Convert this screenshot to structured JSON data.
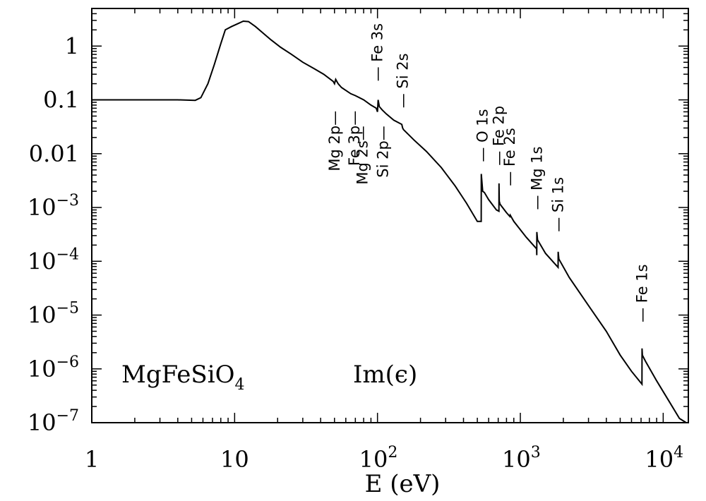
{
  "chart_data": {
    "type": "line",
    "xlabel": "E (eV)",
    "xscale": "log",
    "yscale": "log",
    "xlim": [
      1,
      15000
    ],
    "ylim": [
      1e-07,
      5
    ],
    "x_ticks": [
      {
        "value": 1,
        "base": "1",
        "exp": ""
      },
      {
        "value": 10,
        "base": "10",
        "exp": ""
      },
      {
        "value": 100,
        "base": "10",
        "exp": "2"
      },
      {
        "value": 1000,
        "base": "10",
        "exp": "3"
      },
      {
        "value": 10000,
        "base": "10",
        "exp": "4"
      }
    ],
    "y_ticks": [
      {
        "value": 1,
        "base": "1",
        "exp": ""
      },
      {
        "value": 0.1,
        "base": "0.1",
        "exp": ""
      },
      {
        "value": 0.01,
        "base": "0.01",
        "exp": ""
      },
      {
        "value": 0.001,
        "base": "10",
        "exp": "−3"
      },
      {
        "value": 0.0001,
        "base": "10",
        "exp": "−4"
      },
      {
        "value": 1e-05,
        "base": "10",
        "exp": "−5"
      },
      {
        "value": 1e-06,
        "base": "10",
        "exp": "−6"
      },
      {
        "value": 1e-07,
        "base": "10",
        "exp": "−7"
      }
    ],
    "labels": {
      "material": {
        "main": "MgFeSiO",
        "sub": "4"
      },
      "quantity": "Im(ϵ)"
    },
    "series": [
      {
        "points": [
          [
            1,
            0.1
          ],
          [
            2,
            0.1
          ],
          [
            3,
            0.1
          ],
          [
            4,
            0.1
          ],
          [
            5.3,
            0.098
          ],
          [
            5.8,
            0.11
          ],
          [
            6.5,
            0.2
          ],
          [
            7.2,
            0.45
          ],
          [
            8,
            1.1
          ],
          [
            8.6,
            2.0
          ],
          [
            9.5,
            2.3
          ],
          [
            10.5,
            2.6
          ],
          [
            11.5,
            2.9
          ],
          [
            12.5,
            2.85
          ],
          [
            14,
            2.3
          ],
          [
            16,
            1.7
          ],
          [
            18,
            1.3
          ],
          [
            21,
            0.95
          ],
          [
            25,
            0.7
          ],
          [
            30,
            0.5
          ],
          [
            36,
            0.38
          ],
          [
            42,
            0.3
          ],
          [
            49,
            0.22
          ],
          [
            50,
            0.2
          ],
          [
            51,
            0.24
          ],
          [
            53,
            0.2
          ],
          [
            56,
            0.17
          ],
          [
            60,
            0.15
          ],
          [
            65,
            0.13
          ],
          [
            70,
            0.12
          ],
          [
            80,
            0.1
          ],
          [
            90,
            0.08
          ],
          [
            98,
            0.07
          ],
          [
            100,
            0.06
          ],
          [
            101,
            0.1
          ],
          [
            103,
            0.075
          ],
          [
            108,
            0.065
          ],
          [
            115,
            0.055
          ],
          [
            130,
            0.042
          ],
          [
            148,
            0.035
          ],
          [
            150,
            0.03
          ],
          [
            152,
            0.028
          ],
          [
            180,
            0.018
          ],
          [
            220,
            0.011
          ],
          [
            280,
            0.0055
          ],
          [
            350,
            0.0025
          ],
          [
            420,
            0.0012
          ],
          [
            500,
            0.00055
          ],
          [
            532,
            0.00055
          ],
          [
            533,
            0.0042
          ],
          [
            545,
            0.002
          ],
          [
            560,
            0.0019
          ],
          [
            600,
            0.0014
          ],
          [
            680,
            0.0009
          ],
          [
            708,
            0.00085
          ],
          [
            709,
            0.0028
          ],
          [
            712,
            0.0013
          ],
          [
            721,
            0.00115
          ],
          [
            730,
            0.0011
          ],
          [
            800,
            0.0008
          ],
          [
            845,
            0.00068
          ],
          [
            850,
            0.00072
          ],
          [
            900,
            0.00055
          ],
          [
            1100,
            0.00028
          ],
          [
            1300,
            0.00017
          ],
          [
            1303,
            0.00013
          ],
          [
            1304,
            0.00035
          ],
          [
            1320,
            0.00025
          ],
          [
            1500,
            0.00014
          ],
          [
            1838,
            7.7e-05
          ],
          [
            1839,
            0.00015
          ],
          [
            1860,
            0.00011
          ],
          [
            2200,
            5e-05
          ],
          [
            3000,
            1.5e-05
          ],
          [
            4000,
            5e-06
          ],
          [
            5000,
            1.8e-06
          ],
          [
            6000,
            9e-07
          ],
          [
            7100,
            5.2e-07
          ],
          [
            7112,
            2.4e-06
          ],
          [
            7150,
            1.8e-06
          ],
          [
            7500,
            1.4e-06
          ],
          [
            9000,
            6e-07
          ],
          [
            11000,
            2.5e-07
          ],
          [
            13000,
            1.2e-07
          ],
          [
            14500,
            1e-07
          ]
        ]
      }
    ],
    "edges": [
      {
        "label": "Mg 2p",
        "E": 50,
        "yval": 0.063,
        "vertical": true,
        "anchor": "end",
        "dx": 0
      },
      {
        "label": "Fe 3p",
        "E": 55,
        "yval": 0.063,
        "vertical": true,
        "anchor": "end",
        "dx": 20
      },
      {
        "label": "Mg 2s",
        "E": 90,
        "yval": 0.033,
        "vertical": true,
        "anchor": "end",
        "dx": -12
      },
      {
        "label": "Si 2p",
        "E": 100,
        "yval": 0.033,
        "vertical": true,
        "anchor": "end",
        "dx": 8
      },
      {
        "label": "Fe 3s",
        "E": 100,
        "yval": 0.22,
        "vertical": true,
        "anchor": "start",
        "dx": 0
      },
      {
        "label": "Si 2s",
        "E": 150,
        "yval": 0.07,
        "vertical": true,
        "anchor": "start",
        "dx": 0
      },
      {
        "label": "O 1s",
        "E": 543,
        "yval": 0.007,
        "vertical": true,
        "anchor": "start",
        "dx": 0
      },
      {
        "label": "Fe 2p",
        "E": 708,
        "yval": 0.006,
        "vertical": true,
        "anchor": "start",
        "dx": 0
      },
      {
        "label": "Fe 2s",
        "E": 845,
        "yval": 0.0025,
        "vertical": true,
        "anchor": "start",
        "dx": 0
      },
      {
        "label": "Mg 1s",
        "E": 1303,
        "yval": 0.0009,
        "vertical": true,
        "anchor": "start",
        "dx": 0
      },
      {
        "label": "Si 1s",
        "E": 1839,
        "yval": 0.00035,
        "vertical": true,
        "anchor": "start",
        "dx": 0
      },
      {
        "label": "Fe 1s",
        "E": 7112,
        "yval": 7.3e-06,
        "vertical": true,
        "anchor": "start",
        "dx": 0
      }
    ]
  }
}
